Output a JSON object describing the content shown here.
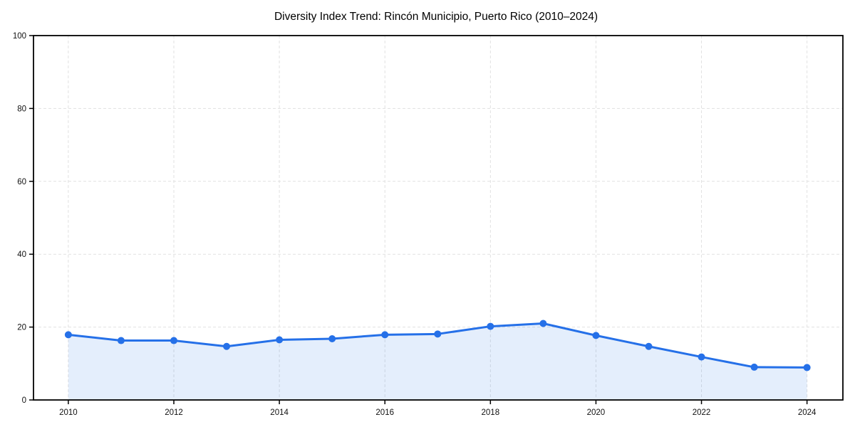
{
  "chart_data": {
    "type": "line",
    "title": "Diversity Index Trend: Rincón Municipio, Puerto Rico (2010–2024)",
    "xlabel": "",
    "ylabel": "",
    "x": [
      2010,
      2011,
      2012,
      2013,
      2014,
      2015,
      2016,
      2017,
      2018,
      2019,
      2020,
      2021,
      2022,
      2023,
      2024
    ],
    "series": [
      {
        "name": "Diversity Index",
        "values": [
          17.9,
          16.3,
          16.3,
          14.7,
          16.5,
          16.8,
          17.9,
          18.1,
          20.2,
          21.0,
          17.7,
          14.7,
          11.8,
          9.0,
          8.9
        ]
      }
    ],
    "ylim": [
      0,
      100
    ],
    "xlim": [
      2009.34,
      2024.68
    ],
    "x_ticks": [
      2010,
      2012,
      2014,
      2016,
      2018,
      2020,
      2022,
      2024
    ],
    "y_ticks": [
      0,
      20,
      40,
      60,
      80,
      100
    ],
    "grid": "dashed both axes",
    "legend_position": "none",
    "colors": {
      "line": "#2570e8",
      "marker": "#2570e8",
      "fill": "#2570e8",
      "fill_opacity": 0.12,
      "grid": "#e1e1e1",
      "axis": "#000000",
      "tick_label": "#111111",
      "title": "#000000",
      "background": "#ffffff"
    }
  }
}
